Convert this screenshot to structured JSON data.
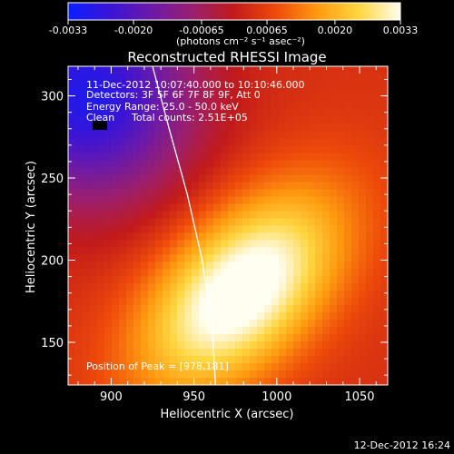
{
  "chart_data": {
    "type": "heatmap",
    "title": "Reconstructed RHESSI Image",
    "xlabel": "Heliocentric X (arcsec)",
    "ylabel": "Heliocentric Y (arcsec)",
    "xlim": [
      874,
      1067
    ],
    "ylim": [
      124,
      318
    ],
    "x_ticks": [
      {
        "value": 900,
        "label": "900"
      },
      {
        "value": 950,
        "label": "950"
      },
      {
        "value": 1000,
        "label": "1000"
      },
      {
        "value": 1050,
        "label": "1050"
      }
    ],
    "y_ticks": [
      {
        "value": 150,
        "label": "150"
      },
      {
        "value": 200,
        "label": "200"
      },
      {
        "value": 250,
        "label": "250"
      },
      {
        "value": 300,
        "label": "300"
      }
    ],
    "colorbar": {
      "unit_label": "(photons cm⁻² s⁻¹ asec⁻²)",
      "range": [
        -0.0033,
        0.0033
      ],
      "colormap": [
        "#0b1fff",
        "#3a14d6",
        "#6b1aa8",
        "#9a1f6e",
        "#c21a1a",
        "#ee4a0a",
        "#ff9a10",
        "#ffd640",
        "#fffef0"
      ],
      "ticks": [
        {
          "value": -0.0033,
          "label": "-0.0033"
        },
        {
          "value": -0.002,
          "label": "-0.0020"
        },
        {
          "value": -0.00065,
          "label": "-0.00065"
        },
        {
          "value": 0.00065,
          "label": "0.00065"
        },
        {
          "value": 0.002,
          "label": "0.0020"
        },
        {
          "value": 0.0033,
          "label": "0.0033"
        }
      ]
    },
    "source": {
      "peak": [
        978,
        181
      ],
      "sigma_major": 52,
      "sigma_minor": 30,
      "angle_deg": 45
    },
    "limb_curve": [
      [
        925,
        318
      ],
      [
        935,
        280
      ],
      [
        946,
        240
      ],
      [
        955,
        200
      ],
      [
        961,
        160
      ],
      [
        963,
        124
      ]
    ],
    "annotations": {
      "time_range": "11-Dec-2012 10:07:40.000 to 10:10:46.000",
      "detectors": "Detectors: 3F 5F 6F 7F 8F 9F, Att 0",
      "energy": "Energy Range: 25.0 - 50.0 keV",
      "clean": "Clean",
      "total_counts": "Total counts: 2.51E+05",
      "peak_position": "Position of Peak = [978,181]"
    }
  },
  "footer": {
    "timestamp": "12-Dec-2012 16:24"
  }
}
